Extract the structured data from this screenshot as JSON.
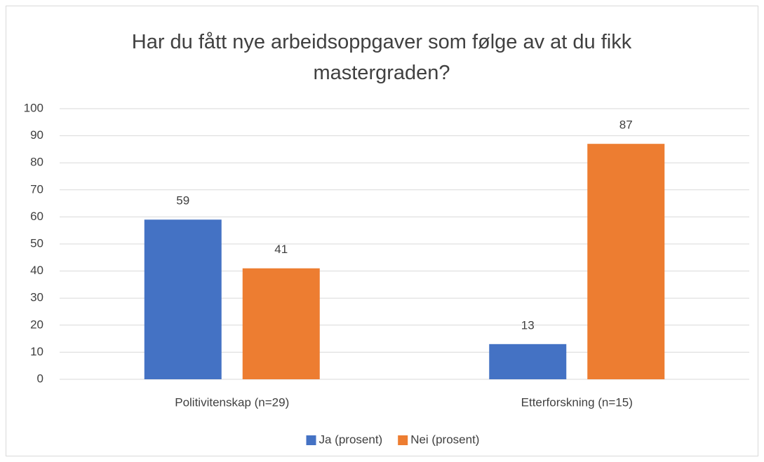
{
  "chart_data": {
    "type": "bar",
    "title": "Har du fått nye arbeidsoppgaver som følge av at du fikk mastergraden?",
    "categories": [
      "Politivitenskap (n=29)",
      "Etterforskning (n=15)"
    ],
    "series": [
      {
        "name": "Ja (prosent)",
        "color": "#4472c4",
        "values": [
          59,
          13
        ]
      },
      {
        "name": "Nei (prosent)",
        "color": "#ed7d31",
        "values": [
          41,
          87
        ]
      }
    ],
    "ylim": [
      0,
      100
    ],
    "yticks": [
      0,
      10,
      20,
      30,
      40,
      50,
      60,
      70,
      80,
      90,
      100
    ],
    "grid": true,
    "legend": "bottom"
  }
}
